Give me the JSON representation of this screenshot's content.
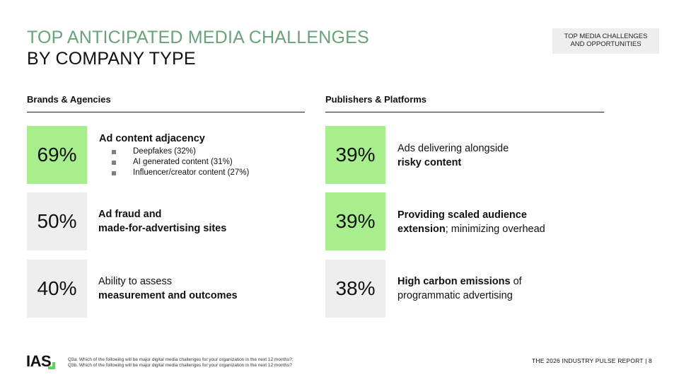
{
  "header": {
    "title_line1": "TOP ANTICIPATED MEDIA CHALLENGES",
    "title_line2": "BY COMPANY TYPE",
    "tag_line1": "TOP MEDIA CHALLENGES",
    "tag_line2": "AND OPPORTUNITIES"
  },
  "columns": {
    "left": {
      "heading": "Brands & Agencies",
      "items": [
        {
          "pct": "69%",
          "highlight": true,
          "title": "Ad content adjacency",
          "subs": [
            "Deepfakes (32%)",
            "AI generated content (31%)",
            "Influencer/creator content (27%)"
          ]
        },
        {
          "pct": "50%",
          "highlight": false,
          "line1": "Ad fraud and",
          "line2": "made-for-advertising sites"
        },
        {
          "pct": "40%",
          "highlight": false,
          "line1": "Ability to assess",
          "line2": "measurement and outcomes"
        }
      ]
    },
    "right": {
      "heading": "Publishers & Platforms",
      "items": [
        {
          "pct": "39%",
          "highlight": true,
          "line1": "Ads delivering alongside",
          "line2": "risky content"
        },
        {
          "pct": "39%",
          "highlight": true,
          "line1_bold": "Providing scaled audience",
          "line2_bold": "extension",
          "line2_rest": "; minimizing overhead"
        },
        {
          "pct": "38%",
          "highlight": false,
          "line1_bold": "High carbon emissions",
          "line1_rest": " of",
          "line2": "programmatic advertising"
        }
      ]
    }
  },
  "footer": {
    "logo": "IAS",
    "note1": "Q3a. Which of the following will be major digital media challenges for your organization in the next 12 months?;",
    "note2": "Q3b. Which of the following will be major digital media challenges for your organization in the next 12 months?",
    "report": "THE 2026 INDUSTRY PULSE REPORT  |  8"
  },
  "colors": {
    "accent_green": "#a8ee8c",
    "title_green": "#6aa27a",
    "grey_box": "#eeeeee"
  }
}
